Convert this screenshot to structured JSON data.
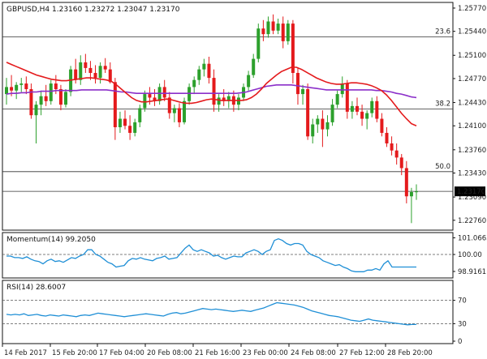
{
  "chart_data": {
    "type": "candlestick",
    "title": "GBPUSD,H4  1.23160 1.23272 1.23047 1.23170",
    "symbol": "GBPUSD",
    "timeframe": "H4",
    "ohlc_header": "1.23160 1.23272 1.23047 1.23170",
    "price_panel": {
      "ylim": [
        1.2262,
        1.2585
      ],
      "y_ticks": [
        "1.25770",
        "1.25440",
        "1.25100",
        "1.24770",
        "1.24430",
        "1.24100",
        "1.23760",
        "1.23430",
        "1.23090",
        "1.22760"
      ],
      "current_price": "1.23170",
      "fib_levels": [
        {
          "label": "23.6",
          "value": 1.2536
        },
        {
          "label": "38.2",
          "value": 1.2434
        },
        {
          "label": "50.0",
          "value": 1.2345
        },
        {
          "label": "",
          "value": 1.2317
        }
      ],
      "candles": [
        [
          1.2455,
          1.2478,
          1.244,
          1.2465
        ],
        [
          1.2465,
          1.2482,
          1.2452,
          1.246
        ],
        [
          1.246,
          1.2472,
          1.2448,
          1.2468
        ],
        [
          1.2468,
          1.2478,
          1.2458,
          1.247
        ],
        [
          1.247,
          1.248,
          1.2455,
          1.2462
        ],
        [
          1.2462,
          1.247,
          1.242,
          1.2425
        ],
        [
          1.2425,
          1.2445,
          1.2385,
          1.244
        ],
        [
          1.244,
          1.246,
          1.2425,
          1.2452
        ],
        [
          1.2452,
          1.2468,
          1.2438,
          1.2445
        ],
        [
          1.2445,
          1.2475,
          1.244,
          1.247
        ],
        [
          1.247,
          1.2482,
          1.2455,
          1.2462
        ],
        [
          1.2462,
          1.2468,
          1.2432,
          1.244
        ],
        [
          1.244,
          1.2462,
          1.2436,
          1.2458
        ],
        [
          1.2458,
          1.2495,
          1.2452,
          1.249
        ],
        [
          1.249,
          1.2505,
          1.247,
          1.2475
        ],
        [
          1.2475,
          1.251,
          1.2468,
          1.25
        ],
        [
          1.25,
          1.2512,
          1.2485,
          1.2492
        ],
        [
          1.2492,
          1.2502,
          1.2475,
          1.2485
        ],
        [
          1.2485,
          1.2496,
          1.247,
          1.2478
        ],
        [
          1.2478,
          1.25,
          1.247,
          1.2495
        ],
        [
          1.2495,
          1.2506,
          1.2485,
          1.249
        ],
        [
          1.249,
          1.25,
          1.247,
          1.2472
        ],
        [
          1.2472,
          1.2478,
          1.239,
          1.2408
        ],
        [
          1.2408,
          1.243,
          1.24,
          1.242
        ],
        [
          1.242,
          1.2432,
          1.2405,
          1.241
        ],
        [
          1.241,
          1.2425,
          1.239,
          1.24
        ],
        [
          1.24,
          1.242,
          1.2395,
          1.2415
        ],
        [
          1.2415,
          1.244,
          1.2408,
          1.2435
        ],
        [
          1.2435,
          1.246,
          1.243,
          1.2455
        ],
        [
          1.2455,
          1.2465,
          1.244,
          1.245
        ],
        [
          1.245,
          1.2462,
          1.2438,
          1.2445
        ],
        [
          1.2445,
          1.247,
          1.244,
          1.2465
        ],
        [
          1.2465,
          1.2475,
          1.2445,
          1.245
        ],
        [
          1.245,
          1.2458,
          1.242,
          1.2428
        ],
        [
          1.2428,
          1.244,
          1.2415,
          1.2435
        ],
        [
          1.2435,
          1.2442,
          1.2408,
          1.2415
        ],
        [
          1.2415,
          1.245,
          1.2412,
          1.2445
        ],
        [
          1.2445,
          1.247,
          1.244,
          1.2465
        ],
        [
          1.2465,
          1.248,
          1.2455,
          1.2475
        ],
        [
          1.2475,
          1.2495,
          1.2468,
          1.249
        ],
        [
          1.249,
          1.2505,
          1.248,
          1.2498
        ],
        [
          1.2498,
          1.2508,
          1.247,
          1.2478
        ],
        [
          1.2478,
          1.249,
          1.243,
          1.244
        ],
        [
          1.244,
          1.2455,
          1.243,
          1.245
        ],
        [
          1.245,
          1.2462,
          1.2438,
          1.2445
        ],
        [
          1.2445,
          1.2458,
          1.2435,
          1.2452
        ],
        [
          1.2452,
          1.246,
          1.243,
          1.244
        ],
        [
          1.244,
          1.2455,
          1.2432,
          1.245
        ],
        [
          1.245,
          1.247,
          1.2445,
          1.2465
        ],
        [
          1.2465,
          1.2488,
          1.246,
          1.2482
        ],
        [
          1.2482,
          1.2512,
          1.2478,
          1.2505
        ],
        [
          1.2505,
          1.2555,
          1.25,
          1.2548
        ],
        [
          1.2548,
          1.256,
          1.253,
          1.254
        ],
        [
          1.254,
          1.2565,
          1.2535,
          1.2558
        ],
        [
          1.2558,
          1.2568,
          1.254,
          1.2545
        ],
        [
          1.2545,
          1.2562,
          1.254,
          1.2555
        ],
        [
          1.2555,
          1.2565,
          1.252,
          1.253
        ],
        [
          1.253,
          1.256,
          1.2525,
          1.2555
        ],
        [
          1.2555,
          1.256,
          1.247,
          1.2485
        ],
        [
          1.2485,
          1.2492,
          1.244,
          1.2455
        ],
        [
          1.2455,
          1.2468,
          1.244,
          1.2462
        ],
        [
          1.2462,
          1.247,
          1.239,
          1.2395
        ],
        [
          1.2395,
          1.242,
          1.2385,
          1.2412
        ],
        [
          1.2412,
          1.2425,
          1.24,
          1.242
        ],
        [
          1.242,
          1.2432,
          1.238,
          1.2405
        ],
        [
          1.2405,
          1.2425,
          1.2395,
          1.2415
        ],
        [
          1.2415,
          1.2448,
          1.241,
          1.244
        ],
        [
          1.244,
          1.246,
          1.2435,
          1.2455
        ],
        [
          1.2455,
          1.248,
          1.245,
          1.247
        ],
        [
          1.247,
          1.2475,
          1.242,
          1.243
        ],
        [
          1.243,
          1.2445,
          1.242,
          1.2438
        ],
        [
          1.2438,
          1.245,
          1.2425,
          1.243
        ],
        [
          1.243,
          1.244,
          1.241,
          1.242
        ],
        [
          1.242,
          1.2432,
          1.2405,
          1.2428
        ],
        [
          1.2428,
          1.245,
          1.2422,
          1.2445
        ],
        [
          1.2445,
          1.2452,
          1.2415,
          1.242
        ],
        [
          1.242,
          1.2428,
          1.2395,
          1.24
        ],
        [
          1.24,
          1.2408,
          1.238,
          1.2385
        ],
        [
          1.2385,
          1.2395,
          1.2368,
          1.2375
        ],
        [
          1.2375,
          1.2385,
          1.2355,
          1.2365
        ],
        [
          1.2365,
          1.237,
          1.234,
          1.235
        ],
        [
          1.235,
          1.236,
          1.23,
          1.231
        ],
        [
          1.231,
          1.2322,
          1.2272,
          1.2316
        ],
        [
          1.2316,
          1.2327,
          1.2305,
          1.2317
        ]
      ],
      "ma_red": [
        1.25,
        1.2497,
        1.2494,
        1.2491,
        1.2488,
        1.2485,
        1.2482,
        1.248,
        1.2478,
        1.2476,
        1.2475,
        1.2474,
        1.2474,
        1.2475,
        1.2476,
        1.2477,
        1.2478,
        1.2478,
        1.2477,
        1.2476,
        1.2475,
        1.2473,
        1.2468,
        1.2462,
        1.2456,
        1.245,
        1.2446,
        1.2444,
        1.2444,
        1.2445,
        1.2446,
        1.2447,
        1.2448,
        1.2447,
        1.2445,
        1.2443,
        1.2442,
        1.2442,
        1.2443,
        1.2445,
        1.2447,
        1.2448,
        1.2447,
        1.2446,
        1.2446,
        1.2446,
        1.2446,
        1.2446,
        1.2447,
        1.245,
        1.2455,
        1.2462,
        1.247,
        1.2476,
        1.2482,
        1.2487,
        1.249,
        1.2493,
        1.2493,
        1.249,
        1.2486,
        1.2482,
        1.2478,
        1.2475,
        1.2472,
        1.247,
        1.2469,
        1.2469,
        1.247,
        1.2471,
        1.2471,
        1.247,
        1.2469,
        1.2467,
        1.2464,
        1.246,
        1.2454,
        1.2446,
        1.2437,
        1.2428,
        1.242,
        1.2413,
        1.241
      ],
      "ma_purple": [
        1.2455,
        1.2456,
        1.2456,
        1.2457,
        1.2457,
        1.2458,
        1.2458,
        1.2459,
        1.2459,
        1.2459,
        1.246,
        1.246,
        1.246,
        1.246,
        1.246,
        1.2461,
        1.2461,
        1.2461,
        1.2461,
        1.2461,
        1.2461,
        1.246,
        1.2459,
        1.2458,
        1.2458,
        1.2457,
        1.2456,
        1.2456,
        1.2456,
        1.2456,
        1.2456,
        1.2456,
        1.2456,
        1.2456,
        1.2456,
        1.2456,
        1.2456,
        1.2456,
        1.2456,
        1.2456,
        1.2456,
        1.2456,
        1.2456,
        1.2456,
        1.2456,
        1.2456,
        1.2456,
        1.2457,
        1.2458,
        1.246,
        1.2462,
        1.2464,
        1.2466,
        1.2467,
        1.2468,
        1.2468,
        1.2468,
        1.2468,
        1.2467,
        1.2466,
        1.2465,
        1.2464,
        1.2463,
        1.2462,
        1.2461,
        1.2461,
        1.2461,
        1.2461,
        1.2461,
        1.2461,
        1.2461,
        1.2461,
        1.2461,
        1.2461,
        1.246,
        1.246,
        1.2459,
        1.2458,
        1.2456,
        1.2455,
        1.2453,
        1.2451,
        1.245
      ]
    },
    "momentum_panel": {
      "title": "Momentum(14) 99.2050",
      "ylim": [
        98.5,
        101.4
      ],
      "y_ticks": [
        "101.0663",
        "100.00",
        "98.9161"
      ],
      "values": [
        99.9,
        99.9,
        99.8,
        99.8,
        99.75,
        99.85,
        99.7,
        99.6,
        99.55,
        99.4,
        99.6,
        99.7,
        99.55,
        99.6,
        99.5,
        99.65,
        99.8,
        99.75,
        99.9,
        100.0,
        100.3,
        100.3,
        100.0,
        99.9,
        99.7,
        99.5,
        99.4,
        99.2,
        99.25,
        99.3,
        99.6,
        99.75,
        99.7,
        99.8,
        99.7,
        99.65,
        99.6,
        99.75,
        99.8,
        99.9,
        99.7,
        99.75,
        99.8,
        100.1,
        100.4,
        100.6,
        100.3,
        100.2,
        100.3,
        100.2,
        100.1,
        99.9,
        99.95,
        99.8,
        99.7,
        99.8,
        99.9,
        99.85,
        99.85,
        100.1,
        100.2,
        100.3,
        100.2,
        100.0,
        100.2,
        100.3,
        100.9,
        101.0,
        100.9,
        100.7,
        100.6,
        100.7,
        100.7,
        100.6,
        100.2,
        100.0,
        99.9,
        99.8,
        99.6,
        99.5,
        99.4,
        99.3,
        99.35,
        99.2,
        99.1,
        98.95,
        98.9,
        98.9,
        98.9,
        99.0,
        99.0,
        99.1,
        99.0,
        99.4,
        99.6,
        99.2,
        99.2,
        99.2,
        99.2,
        99.2,
        99.2,
        99.2
      ],
      "current": "99.2050"
    },
    "rsi_panel": {
      "title": "RSI(14) 28.6007",
      "ylim": [
        0,
        100
      ],
      "y_ticks": [
        "70",
        "30",
        "0"
      ],
      "values": [
        46,
        45,
        46,
        45,
        47,
        44,
        45,
        46,
        44,
        43,
        45,
        44,
        43,
        45,
        44,
        43,
        42,
        44,
        45,
        44,
        46,
        48,
        47,
        46,
        45,
        44,
        43,
        42,
        43,
        44,
        45,
        46,
        47,
        46,
        45,
        44,
        43,
        46,
        48,
        49,
        47,
        48,
        50,
        52,
        54,
        56,
        55,
        54,
        55,
        54,
        53,
        52,
        51,
        52,
        53,
        52,
        51,
        53,
        55,
        57,
        60,
        63,
        66,
        65,
        64,
        63,
        62,
        60,
        58,
        55,
        52,
        50,
        48,
        46,
        44,
        43,
        42,
        40,
        38,
        36,
        35,
        34,
        36,
        38,
        36,
        35,
        34,
        33,
        32,
        31,
        30,
        29,
        28,
        28.6,
        28.6
      ],
      "current": "28.6007"
    },
    "x_labels": [
      "14 Feb 2017",
      "15 Feb 20:00",
      "17 Feb 04:00",
      "20 Feb 08:00",
      "21 Feb 16:00",
      "23 Feb 00:00",
      "24 Feb 08:00",
      "27 Feb 12:00",
      "28 Feb 20:00"
    ]
  },
  "colors": {
    "bull": "#2ca02c",
    "bear": "#e41a1c",
    "ma_red": "#e41a1c",
    "ma_purple": "#8b2fc9",
    "indicator": "#1f8fd6",
    "grid": "#555555",
    "axis": "#111111"
  }
}
